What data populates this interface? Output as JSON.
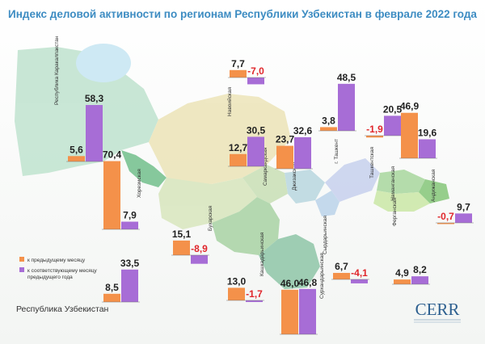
{
  "chart_data": {
    "type": "bar",
    "title": "Индекс деловой активности по регионам Республики Узбекистан в феврале 2022 года",
    "legend": {
      "position": "bottom-left",
      "items": [
        {
          "name": "к предыдущему месяцу",
          "color": "#f4914a"
        },
        {
          "name": "к соответствующему месяцу предыдущего года",
          "color": "#a76dd6"
        }
      ]
    },
    "series": [
      {
        "name": "к предыдущему месяцу",
        "color": "#f4914a"
      },
      {
        "name": "к соответствующему месяцу предыдущего года",
        "color": "#a76dd6"
      }
    ],
    "negative_color": "#e0262b",
    "regions": [
      {
        "name": "Республика Каракалпакстан",
        "values": [
          5.6,
          58.3
        ]
      },
      {
        "name": "Хорезмская",
        "values": [
          70.4,
          7.9
        ]
      },
      {
        "name": "Навоийская",
        "values": [
          7.7,
          -7.0
        ]
      },
      {
        "name": "Бухарская",
        "values": [
          15.1,
          -8.9
        ]
      },
      {
        "name": "Самаркандская",
        "values": [
          12.7,
          30.5
        ]
      },
      {
        "name": "Джизакская",
        "values": [
          23.7,
          32.6
        ]
      },
      {
        "name": "г. Ташкент",
        "values": [
          3.8,
          48.5
        ]
      },
      {
        "name": "Ташкентская",
        "values": [
          -1.9,
          20.5
        ]
      },
      {
        "name": "Наманганская",
        "values": [
          46.9,
          19.6
        ]
      },
      {
        "name": "Андижанская",
        "values": [
          -0.7,
          9.7
        ]
      },
      {
        "name": "Ферганская",
        "values": [
          4.9,
          8.2
        ]
      },
      {
        "name": "Сырдарьинская",
        "values": [
          6.7,
          -4.1
        ]
      },
      {
        "name": "Сурхандарьинская",
        "values": [
          46.0,
          46.8
        ]
      },
      {
        "name": "Кашкадарьинская",
        "values": [
          13.0,
          -1.7
        ]
      },
      {
        "name": "Республика Узбекистан",
        "values": [
          8.5,
          33.5
        ]
      }
    ]
  },
  "logo": {
    "text": "CERR"
  }
}
